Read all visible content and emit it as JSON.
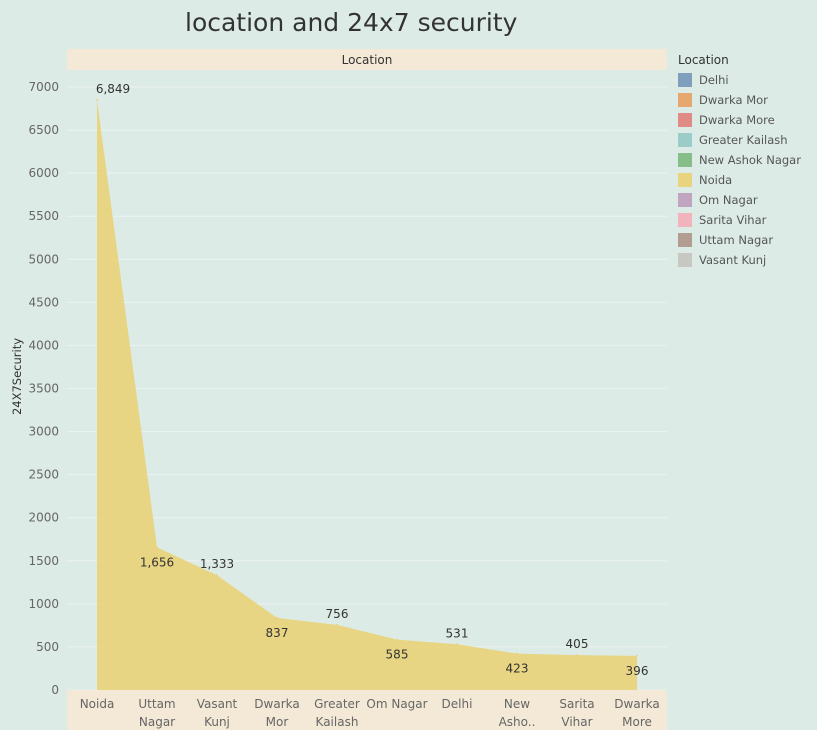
{
  "title": "location and 24x7 security",
  "colors": {
    "background": "#ddebe7",
    "header_band": "#f3e9d6",
    "area_fill": "#e8d47e",
    "gridline": "#ecf3f1",
    "text": "#333333",
    "muted_text": "#666666"
  },
  "chart_data": {
    "type": "area",
    "column_header": "Location",
    "ylabel": "24X7Security",
    "xlabel": "",
    "categories": [
      [
        "Noida"
      ],
      [
        "Uttam",
        "Nagar"
      ],
      [
        "Vasant",
        "Kunj"
      ],
      [
        "Dwarka",
        "Mor"
      ],
      [
        "Greater",
        "Kailash"
      ],
      [
        "Om Nagar"
      ],
      [
        "Delhi"
      ],
      [
        "New",
        "Asho.."
      ],
      [
        "Sarita",
        "Vihar"
      ],
      [
        "Dwarka",
        "More"
      ]
    ],
    "values": [
      6849,
      1656,
      1333,
      837,
      756,
      585,
      531,
      423,
      405,
      396
    ],
    "data_labels": [
      "6,849",
      "1,656",
      "1,333",
      "837",
      "756",
      "585",
      "531",
      "423",
      "405",
      "396"
    ],
    "ylim": [
      0,
      7000
    ],
    "yticks": [
      0,
      500,
      1000,
      1500,
      2000,
      2500,
      3000,
      3500,
      4000,
      4500,
      5000,
      5500,
      6000,
      6500,
      7000
    ],
    "grid": true,
    "legend": {
      "title": "Location",
      "placement": "right",
      "items": [
        {
          "label": "Delhi",
          "color": "#7f9fbd"
        },
        {
          "label": "Dwarka Mor",
          "color": "#e6a86f"
        },
        {
          "label": "Dwarka More",
          "color": "#df8c86"
        },
        {
          "label": "Greater Kailash",
          "color": "#9cccc7"
        },
        {
          "label": "New Ashok Nagar",
          "color": "#86bd88"
        },
        {
          "label": "Noida",
          "color": "#e8d47e"
        },
        {
          "label": "Om Nagar",
          "color": "#c1a4c1"
        },
        {
          "label": "Sarita Vihar",
          "color": "#f1b4bd"
        },
        {
          "label": "Uttam Nagar",
          "color": "#b39d90"
        },
        {
          "label": "Vasant Kunj",
          "color": "#c8c8c2"
        }
      ]
    }
  }
}
